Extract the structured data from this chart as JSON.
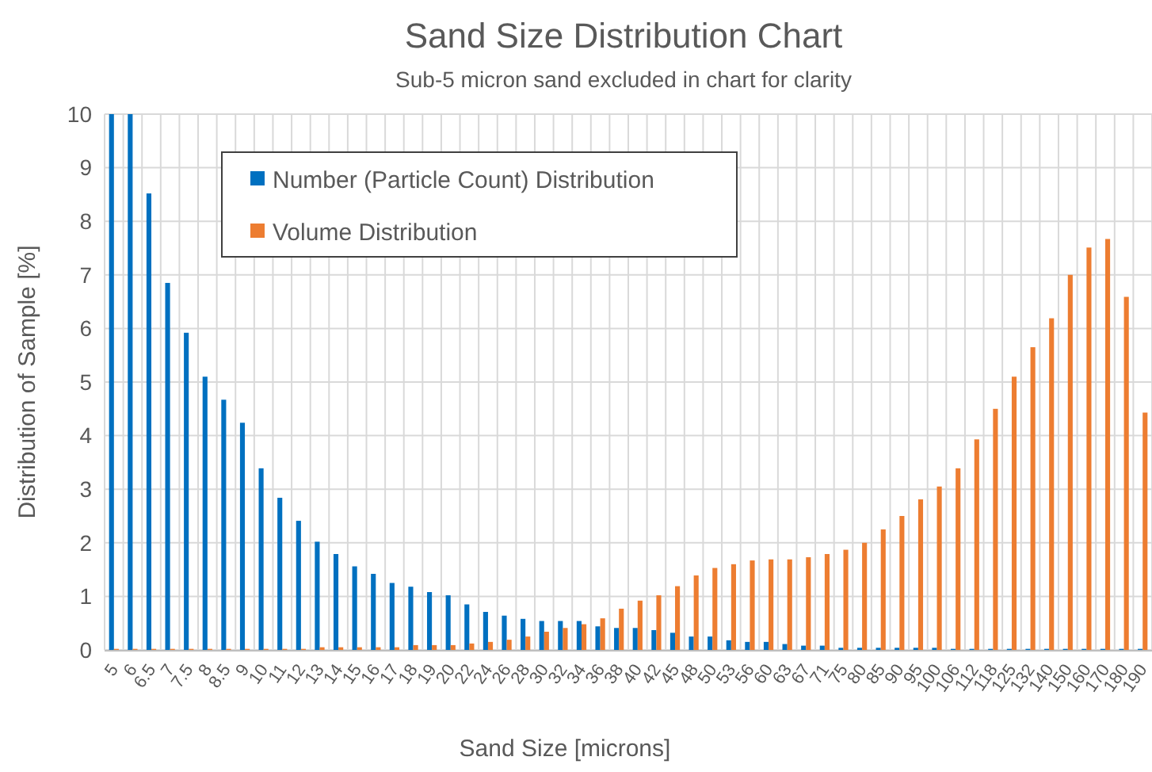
{
  "chart_data": {
    "type": "bar",
    "title": "Sand Size Distribution Chart",
    "subtitle": "Sub-5 micron sand excluded in chart for clarity",
    "xlabel": "Sand Size [microns]",
    "ylabel": "Distribution of Sample [%]",
    "categories": [
      "5",
      "6",
      "6.5",
      "7",
      "7.5",
      "8",
      "8.5",
      "9",
      "10",
      "11",
      "12",
      "13",
      "14",
      "15",
      "16",
      "17",
      "18",
      "19",
      "20",
      "22",
      "24",
      "26",
      "28",
      "30",
      "32",
      "34",
      "36",
      "38",
      "40",
      "42",
      "45",
      "48",
      "50",
      "53",
      "56",
      "60",
      "63",
      "67",
      "71",
      "75",
      "80",
      "85",
      "90",
      "95",
      "100",
      "106",
      "112",
      "118",
      "125",
      "132",
      "140",
      "150",
      "160",
      "170",
      "180",
      "190"
    ],
    "series": [
      {
        "name": "Number (Particle Count) Distribution",
        "color": "#0070c0",
        "values": [
          10,
          10,
          8.52,
          6.85,
          5.92,
          5.1,
          4.67,
          4.24,
          3.39,
          2.84,
          2.41,
          2.02,
          1.79,
          1.56,
          1.42,
          1.25,
          1.18,
          1.08,
          1.02,
          0.85,
          0.71,
          0.64,
          0.58,
          0.54,
          0.54,
          0.54,
          0.44,
          0.41,
          0.41,
          0.37,
          0.32,
          0.25,
          0.25,
          0.18,
          0.15,
          0.15,
          0.11,
          0.08,
          0.08,
          0.04,
          0.04,
          0.04,
          0.04,
          0.04,
          0.04,
          0.02,
          0.02,
          0.02,
          0.02,
          0.02,
          0.02,
          0.02,
          0.02,
          0.02,
          0.02,
          0.02
        ]
      },
      {
        "name": "Volume Distribution",
        "color": "#ed7d31",
        "values": [
          0.02,
          0.02,
          0.02,
          0.02,
          0.02,
          0.02,
          0.02,
          0.02,
          0.02,
          0.02,
          0.02,
          0.05,
          0.05,
          0.05,
          0.05,
          0.05,
          0.09,
          0.09,
          0.09,
          0.12,
          0.15,
          0.19,
          0.25,
          0.34,
          0.41,
          0.48,
          0.59,
          0.77,
          0.92,
          1.02,
          1.19,
          1.39,
          1.53,
          1.6,
          1.67,
          1.69,
          1.69,
          1.73,
          1.79,
          1.87,
          2.0,
          2.25,
          2.5,
          2.81,
          3.05,
          3.39,
          3.93,
          4.5,
          5.1,
          5.65,
          6.19,
          7.0,
          7.51,
          7.67,
          6.59,
          4.43
        ]
      }
    ],
    "ylim": [
      0,
      10
    ],
    "yticks": [
      0,
      1,
      2,
      3,
      4,
      5,
      6,
      7,
      8,
      9,
      10
    ],
    "grid": true,
    "legend": "top left"
  }
}
